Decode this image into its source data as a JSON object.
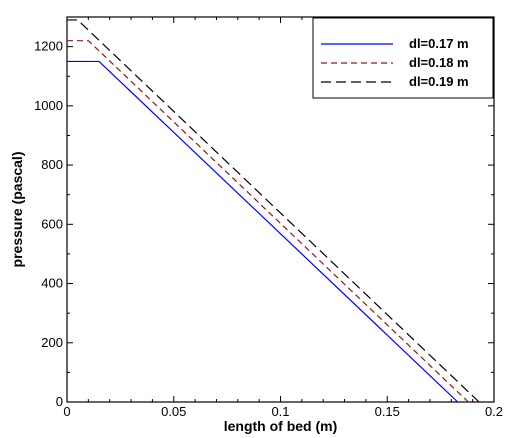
{
  "chart_data": {
    "type": "line",
    "title": "",
    "xlabel": "length of bed (m)",
    "ylabel": "pressure (pascal)",
    "xlim": [
      0,
      0.2
    ],
    "ylim": [
      0,
      1300
    ],
    "xticks": [
      0,
      0.05,
      0.1,
      0.15,
      0.2
    ],
    "xtick_labels": [
      "0",
      "0.05",
      "0.1",
      "0.15",
      "0.2"
    ],
    "yticks": [
      0,
      200,
      400,
      600,
      800,
      1000,
      1200
    ],
    "ytick_labels": [
      "0",
      "200",
      "400",
      "600",
      "800",
      "1000",
      "1200"
    ],
    "grid": false,
    "legend_position": "top-right",
    "series": [
      {
        "name": "dl=0.17 m",
        "color": "#0000ff",
        "dash": "solid",
        "x": [
          0,
          0.015,
          0.183
        ],
        "y": [
          1150,
          1150,
          0
        ]
      },
      {
        "name": "dl=0.18 m",
        "color": "#8b1a1a",
        "dash": "dashed",
        "x": [
          0,
          0.01,
          0.188
        ],
        "y": [
          1220,
          1220,
          0
        ]
      },
      {
        "name": "dl=0.19 m",
        "color": "#000000",
        "dash": "longdash",
        "x": [
          0,
          0.005,
          0.193
        ],
        "y": [
          1290,
          1290,
          0
        ]
      }
    ]
  }
}
